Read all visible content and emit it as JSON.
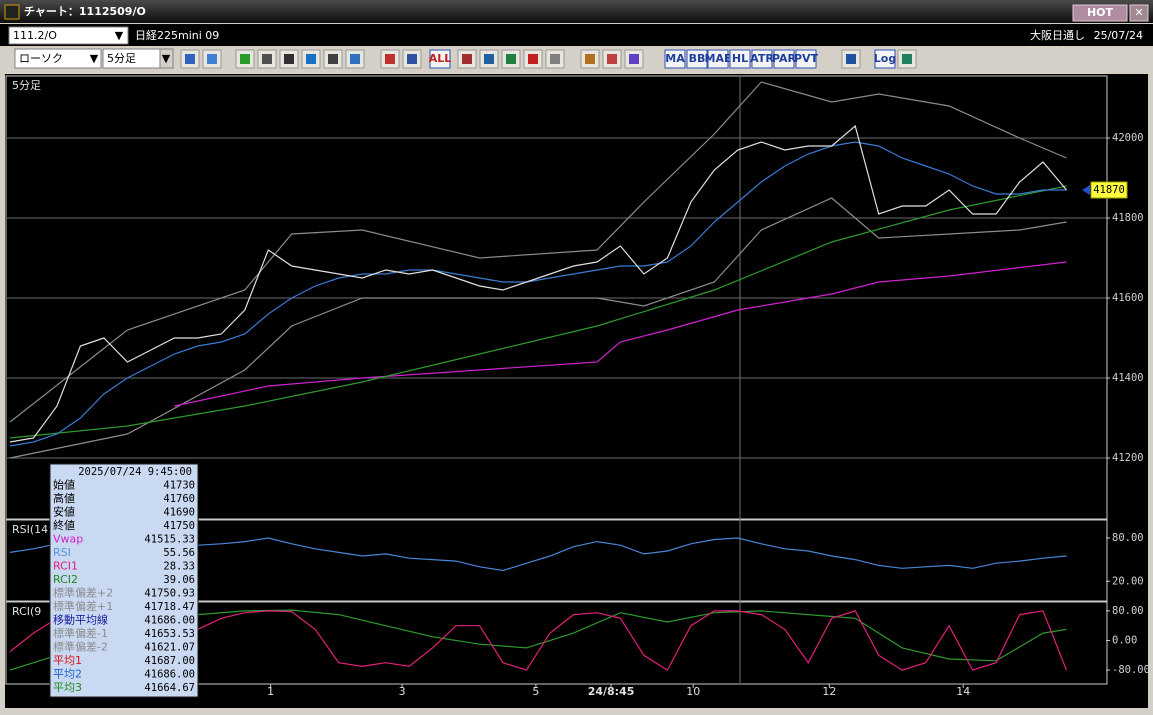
{
  "window": {
    "title": "チャート：1112509/O",
    "badge": "HOT"
  },
  "toolbar": {
    "symbol": "111.2/O",
    "name": "日経225mini 09",
    "market": "大阪日通し",
    "date": "25/07/24",
    "chart_style": "ローソク",
    "interval": "5分足",
    "buttons": [
      "ALL",
      "MA",
      "BB",
      "MAE",
      "HL",
      "ATR",
      "PAR",
      "PVT",
      "Log"
    ]
  },
  "chart_data": [
    {
      "type": "line",
      "title": "5分足",
      "grid": true,
      "xlim": [
        0,
        46
      ],
      "ylim": [
        41050,
        42155
      ],
      "yticks": [
        41200,
        41400,
        41600,
        41800,
        42000
      ],
      "x": [
        0,
        1,
        2,
        3,
        4,
        5,
        6,
        7,
        8,
        9,
        10,
        11,
        12,
        13,
        14,
        15,
        16,
        17,
        18,
        19,
        20,
        21,
        22,
        23,
        24,
        25,
        26,
        27,
        28,
        29,
        30,
        31,
        32,
        33,
        34,
        35,
        36,
        37,
        38,
        39,
        40,
        41,
        42,
        43,
        44,
        45
      ],
      "last_price": 41870,
      "series": [
        {
          "color": "#8c8c8c",
          "x": [
            0,
            5,
            10,
            12,
            15,
            20,
            25,
            27,
            30,
            32,
            35,
            37,
            40,
            43,
            45
          ],
          "values": [
            41290,
            41520,
            41620,
            41760,
            41770,
            41700,
            41720,
            41840,
            42010,
            42140,
            42090,
            42110,
            42080,
            42000,
            41950
          ]
        },
        {
          "color": "#8c8c8c",
          "x": [
            0,
            5,
            10,
            12,
            15,
            20,
            25,
            27,
            30,
            32,
            35,
            37,
            40,
            43,
            45
          ],
          "values": [
            41200,
            41260,
            41420,
            41530,
            41600,
            41600,
            41600,
            41580,
            41640,
            41770,
            41850,
            41750,
            41760,
            41770,
            41790
          ]
        },
        {
          "color": "#d020d0",
          "x": [
            7,
            11,
            15,
            20,
            25,
            26,
            28,
            31,
            35,
            37,
            40,
            45
          ],
          "values": [
            41330,
            41380,
            41400,
            41420,
            41440,
            41490,
            41520,
            41570,
            41610,
            41640,
            41655,
            41690
          ]
        },
        {
          "color": "#2e9a2e",
          "x": [
            0,
            5,
            10,
            15,
            20,
            25,
            30,
            35,
            40,
            45
          ],
          "values": [
            41250,
            41280,
            41330,
            41390,
            41460,
            41530,
            41620,
            41740,
            41820,
            41880
          ]
        },
        {
          "color": "#3a7bd5",
          "values": [
            41230,
            41240,
            41260,
            41300,
            41360,
            41400,
            41430,
            41460,
            41480,
            41490,
            41510,
            41560,
            41600,
            41630,
            41650,
            41660,
            41660,
            41670,
            41670,
            41660,
            41650,
            41640,
            41640,
            41650,
            41660,
            41670,
            41680,
            41680,
            41690,
            41730,
            41790,
            41840,
            41890,
            41930,
            41960,
            41980,
            41990,
            41980,
            41950,
            41930,
            41910,
            41880,
            41860,
            41860,
            41870,
            41870
          ]
        },
        {
          "color": "#e0e0e0",
          "values": [
            41240,
            41250,
            41330,
            41480,
            41500,
            41440,
            41470,
            41500,
            41500,
            41510,
            41570,
            41720,
            41680,
            41670,
            41660,
            41650,
            41670,
            41660,
            41670,
            41650,
            41630,
            41620,
            41640,
            41660,
            41680,
            41690,
            41730,
            41660,
            41700,
            41840,
            41920,
            41970,
            41990,
            41970,
            41980,
            41980,
            42030,
            41810,
            41830,
            41830,
            41870,
            41810,
            41810,
            41890,
            41940,
            41870
          ]
        }
      ]
    },
    {
      "type": "line",
      "title": "RSI(14",
      "grid": false,
      "xlim": [
        0,
        46
      ],
      "ylim": [
        -6,
        105
      ],
      "yticks": [
        {
          "value": 80,
          "label": "80.00"
        },
        {
          "value": 20,
          "label": "20.00"
        }
      ],
      "x": [
        0,
        1,
        2,
        3,
        4,
        5,
        6,
        7,
        8,
        9,
        10,
        11,
        12,
        13,
        14,
        15,
        16,
        17,
        18,
        19,
        20,
        21,
        22,
        23,
        24,
        25,
        26,
        27,
        28,
        29,
        30,
        31,
        32,
        33,
        34,
        35,
        36,
        37,
        38,
        39,
        40,
        41,
        42,
        43,
        44,
        45
      ],
      "series": [
        {
          "color": "#4a86d8",
          "values": [
            60,
            65,
            72,
            70,
            65,
            60,
            62,
            68,
            70,
            72,
            75,
            80,
            72,
            65,
            60,
            55,
            58,
            52,
            50,
            48,
            40,
            35,
            45,
            55,
            68,
            75,
            70,
            58,
            62,
            72,
            78,
            80,
            72,
            65,
            62,
            55,
            50,
            42,
            38,
            40,
            42,
            38,
            45,
            48,
            52,
            55
          ]
        }
      ]
    },
    {
      "type": "line",
      "title": "RCI(9",
      "grid": false,
      "xlim": [
        0,
        46
      ],
      "ylim": [
        -115,
        104
      ],
      "yticks": [
        {
          "value": 80,
          "label": "80.00"
        },
        {
          "value": 0,
          "label": "0.00"
        },
        {
          "value": -80,
          "label": "-80.00"
        }
      ],
      "x": [
        0,
        1,
        2,
        3,
        4,
        5,
        6,
        7,
        8,
        9,
        10,
        11,
        12,
        13,
        14,
        15,
        16,
        17,
        18,
        19,
        20,
        21,
        22,
        23,
        24,
        25,
        26,
        27,
        28,
        29,
        30,
        31,
        32,
        33,
        34,
        35,
        36,
        37,
        38,
        39,
        40,
        41,
        42,
        43,
        44,
        45
      ],
      "xticks": [
        {
          "value": 11.1,
          "label": "1"
        },
        {
          "value": 16.7,
          "label": "3"
        },
        {
          "value": 22.4,
          "label": "5"
        },
        {
          "value": 25.6,
          "label": "24/8:45"
        },
        {
          "value": 29.1,
          "label": "10"
        },
        {
          "value": 34.9,
          "label": "12"
        },
        {
          "value": 40.6,
          "label": "14"
        }
      ],
      "series": [
        {
          "color": "#2e9a2e",
          "x": [
            0,
            2,
            4,
            6,
            8,
            10,
            12,
            14,
            16,
            18,
            20,
            22,
            24,
            26,
            28,
            30,
            32,
            34,
            36,
            38,
            40,
            42,
            44,
            45
          ],
          "values": [
            -80,
            -40,
            30,
            60,
            70,
            80,
            82,
            70,
            40,
            10,
            -10,
            -20,
            20,
            75,
            50,
            75,
            80,
            70,
            60,
            -20,
            -50,
            -55,
            20,
            30
          ]
        },
        {
          "color": "#e0207a",
          "values": [
            -30,
            20,
            60,
            75,
            70,
            40,
            -20,
            -40,
            30,
            60,
            75,
            80,
            78,
            30,
            -60,
            -70,
            -60,
            -70,
            -20,
            40,
            40,
            -60,
            -80,
            20,
            70,
            75,
            60,
            -40,
            -80,
            40,
            80,
            80,
            70,
            30,
            -60,
            60,
            80,
            -40,
            -80,
            -60,
            40,
            -80,
            -60,
            70,
            80,
            -80
          ]
        }
      ]
    }
  ],
  "info_box": {
    "datetime": "2025/07/24 9:45:00",
    "rows": [
      {
        "label": "始値",
        "value": "41730",
        "color": "#000000"
      },
      {
        "label": "高値",
        "value": "41760",
        "color": "#000000"
      },
      {
        "label": "安値",
        "value": "41690",
        "color": "#000000"
      },
      {
        "label": "終値",
        "value": "41750",
        "color": "#000000"
      },
      {
        "label": "Vwap",
        "value": "41515.33",
        "color": "#d020d0"
      },
      {
        "label": "RSI",
        "value": "55.56",
        "color": "#5a8fe0"
      },
      {
        "label": "RCI1",
        "value": "28.33",
        "color": "#e0207a"
      },
      {
        "label": "RCI2",
        "value": "39.06",
        "color": "#1e8a1e"
      },
      {
        "label": "標準偏差+2",
        "value": "41750.93",
        "color": "#8c8c8c"
      },
      {
        "label": "標準偏差+1",
        "value": "41718.47",
        "color": "#8c8c8c"
      },
      {
        "label": "移動平均線",
        "value": "41686.00",
        "color": "#1a1aa0"
      },
      {
        "label": "標準偏差-1",
        "value": "41653.53",
        "color": "#8c8c8c"
      },
      {
        "label": "標準偏差-2",
        "value": "41621.07",
        "color": "#8c8c8c"
      },
      {
        "label": "平均1",
        "value": "41687.00",
        "color": "#e01010"
      },
      {
        "label": "平均2",
        "value": "41686.00",
        "color": "#2060d0"
      },
      {
        "label": "平均3",
        "value": "41664.67",
        "color": "#1e8a1e"
      }
    ]
  }
}
